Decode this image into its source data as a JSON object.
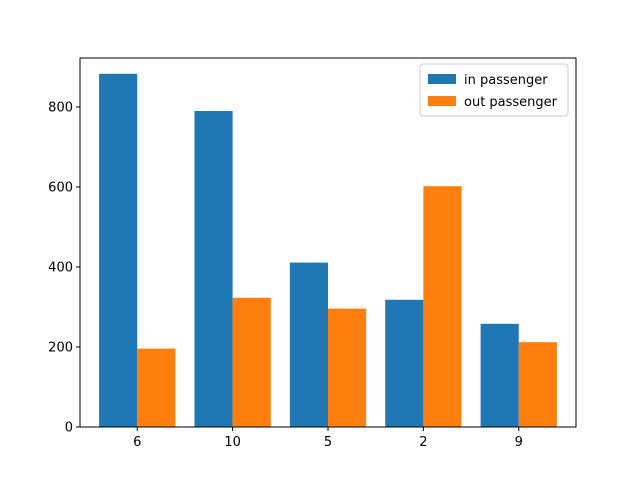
{
  "chart_data": {
    "type": "bar",
    "title": "",
    "xlabel": "",
    "ylabel": "",
    "categories": [
      "6",
      "10",
      "5",
      "2",
      "9"
    ],
    "series": [
      {
        "name": "in passenger",
        "color": "#1f77b4",
        "values": [
          883,
          790,
          411,
          318,
          258
        ]
      },
      {
        "name": "out passenger",
        "color": "#ff7f0e",
        "values": [
          196,
          323,
          296,
          602,
          212
        ]
      }
    ],
    "ylim": [
      0,
      922.5
    ],
    "yticks": [
      0,
      200,
      400,
      600,
      800
    ],
    "grid": false,
    "legend": {
      "position": "top-right"
    }
  }
}
